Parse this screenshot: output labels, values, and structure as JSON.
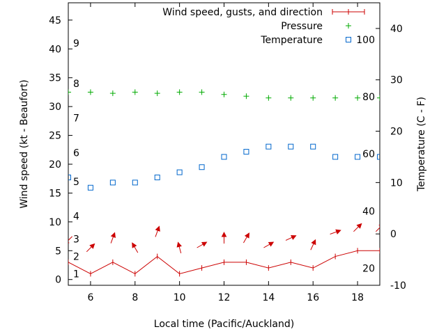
{
  "chart_data": {
    "type": "line",
    "xlabel": "Local time (Pacific/Auckland)",
    "ylabel": "Wind speed (kt - Beaufort)",
    "y2label": "Temperature (C - F)",
    "xlim": [
      5,
      19
    ],
    "ylim": [
      -1,
      48
    ],
    "y2lim": [
      -10,
      45
    ],
    "x_ticks": [
      6,
      8,
      10,
      12,
      14,
      16,
      18
    ],
    "y_ticks": [
      0,
      5,
      10,
      15,
      20,
      25,
      30,
      35,
      40,
      45
    ],
    "y2_ticks": [
      -10,
      0,
      10,
      20,
      30,
      40
    ],
    "beaufort_labels": [
      {
        "label": "1",
        "y": 1
      },
      {
        "label": "2",
        "y": 4
      },
      {
        "label": "3",
        "y": 7
      },
      {
        "label": "4",
        "y": 11
      },
      {
        "label": "5",
        "y": 17
      },
      {
        "label": "6",
        "y": 22
      },
      {
        "label": "7",
        "y": 28
      },
      {
        "label": "8",
        "y": 34
      },
      {
        "label": "9",
        "y": 41
      }
    ],
    "fahrenheit_labels": [
      {
        "label": "20",
        "t": -6.7
      },
      {
        "label": "40",
        "t": 4.4
      },
      {
        "label": "60",
        "t": 15.6
      },
      {
        "label": "80",
        "t": 26.7
      },
      {
        "label": "100",
        "t": 37.8
      }
    ],
    "legend": {
      "position": "top-right",
      "entries": [
        "Wind speed, gusts, and direction",
        "Pressure",
        "Temperature"
      ]
    },
    "colors": {
      "wind": "#cc0000",
      "pressure": "#00aa00",
      "temperature": "#0066cc"
    },
    "series": [
      {
        "name": "Wind speed, gusts, and direction",
        "x": [
          5,
          6,
          7,
          8,
          9,
          10,
          11,
          12,
          13,
          14,
          15,
          16,
          17,
          18,
          19
        ],
        "y": [
          3,
          1,
          3,
          1,
          4,
          1,
          2,
          3,
          3,
          2,
          3,
          2,
          4,
          5,
          5
        ]
      },
      {
        "name": "Wind direction arrows",
        "x": [
          5,
          6,
          7,
          8,
          9,
          10,
          11,
          12,
          13,
          14,
          15,
          16,
          17,
          18,
          19
        ],
        "y": [
          6.8,
          5.5,
          7.2,
          5.5,
          8.3,
          5.5,
          6.0,
          7.2,
          7.2,
          6.0,
          7.2,
          6.0,
          8.2,
          9.0,
          9.0
        ],
        "direction_deg": [
          225,
          45,
          20,
          330,
          20,
          345,
          60,
          0,
          30,
          60,
          65,
          25,
          70,
          45,
          45
        ]
      },
      {
        "name": "Pressure",
        "x": [
          5,
          6,
          7,
          8,
          9,
          10,
          11,
          12,
          13,
          14,
          15,
          16,
          17,
          18,
          19
        ],
        "y": [
          32.5,
          32.5,
          32.3,
          32.5,
          32.3,
          32.5,
          32.5,
          32.1,
          31.8,
          31.5,
          31.5,
          31.5,
          31.5,
          31.5,
          31.5
        ]
      },
      {
        "name": "Temperature",
        "x": [
          5,
          6,
          7,
          8,
          9,
          10,
          11,
          12,
          13,
          14,
          15,
          16,
          17,
          18,
          19
        ],
        "y": [
          11,
          9,
          10,
          10,
          11,
          12,
          13,
          15,
          16,
          17,
          17,
          17,
          15,
          15,
          15
        ]
      }
    ]
  }
}
